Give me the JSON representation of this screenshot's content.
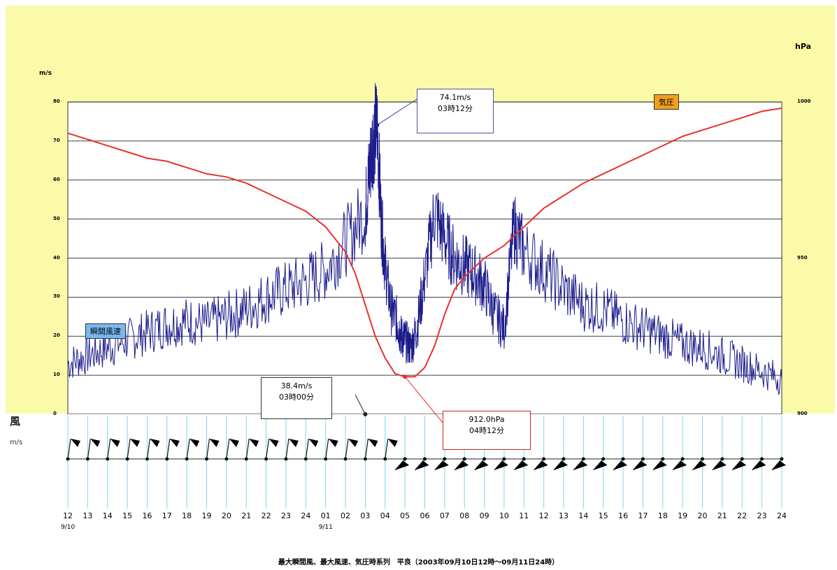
{
  "chart_data": {
    "type": "line",
    "title": "",
    "caption": "最大瞬間風、最大風速、気圧時系列　平良（2003年09月10日12時～09月11日24時）",
    "y_left": {
      "unit": "m/s",
      "range": [
        0,
        80
      ],
      "ticks": [
        0,
        10,
        20,
        30,
        40,
        50,
        60,
        70,
        80
      ]
    },
    "y_right": {
      "unit": "hPa",
      "range": [
        900,
        1000
      ],
      "ticks": [
        "900",
        "950",
        "1000"
      ]
    },
    "x": {
      "ticks": [
        "12",
        "13",
        "14",
        "15",
        "16",
        "17",
        "18",
        "19",
        "20",
        "21",
        "22",
        "23",
        "24",
        "01",
        "02",
        "03",
        "04",
        "05",
        "06",
        "07",
        "08",
        "09",
        "10",
        "11",
        "12",
        "13",
        "14",
        "15",
        "16",
        "17",
        "18",
        "19",
        "20",
        "21",
        "22",
        "23",
        "24"
      ],
      "date_labels": [
        {
          "at_index": 0,
          "text": "9/10"
        },
        {
          "at_index": 13,
          "text": "9/11"
        }
      ],
      "range": [
        0,
        36
      ]
    },
    "grid": "horizontal",
    "series": [
      {
        "name": "瞬間風速",
        "color": "#1c1c8c",
        "axis": "left",
        "x": [
          0,
          1,
          2,
          3,
          4,
          5,
          6,
          7,
          8,
          9,
          10,
          11,
          12,
          13,
          14,
          15,
          15.2,
          15.4,
          15.6,
          15.8,
          16,
          16.3,
          16.6,
          16.8,
          17,
          17.3,
          17.6,
          18,
          18.5,
          19,
          19.5,
          20,
          20.5,
          21,
          21.5,
          22,
          22.5,
          23,
          24,
          25,
          26,
          27,
          28,
          29,
          30,
          31,
          32,
          33,
          34,
          35,
          36
        ],
        "values": [
          13,
          15,
          17,
          19,
          21,
          23,
          24,
          23,
          25,
          27,
          30,
          32,
          34,
          37,
          44,
          52,
          62,
          71,
          74.1,
          50,
          38,
          27,
          24,
          20,
          19,
          17,
          22,
          35,
          52,
          45,
          40,
          38,
          36,
          33,
          26,
          22,
          48,
          42,
          37,
          32,
          28,
          27,
          24,
          22,
          20,
          18,
          17,
          15,
          13,
          11,
          9
        ]
      },
      {
        "name": "気圧",
        "color": "#e83030",
        "axis": "right",
        "x": [
          0,
          1,
          2,
          3,
          4,
          5,
          6,
          7,
          8,
          9,
          10,
          11,
          12,
          13,
          14,
          14.5,
          15,
          15.5,
          16,
          16.5,
          17,
          17.5,
          18,
          18.5,
          19,
          19.5,
          20,
          21,
          22,
          23,
          24,
          25,
          26,
          27,
          28,
          29,
          30,
          31,
          32,
          33,
          34,
          35,
          36
        ],
        "values": [
          990,
          988,
          986,
          984,
          982,
          981,
          979,
          977,
          976,
          974,
          971,
          968,
          965,
          960,
          952,
          945,
          935,
          925,
          918,
          913,
          912,
          912,
          915,
          922,
          932,
          940,
          944,
          950,
          954,
          960,
          966,
          970,
          974,
          977,
          980,
          983,
          986,
          989,
          991,
          993,
          995,
          997,
          998
        ]
      }
    ],
    "annotations": [
      {
        "text": "74.1m/s",
        "text2": "03時12分",
        "series": "瞬間風速"
      },
      {
        "text": "38.4m/s",
        "text2": "03時00分",
        "series": "最大風速"
      },
      {
        "text": "912.0hPa",
        "text2": "04時12分",
        "series": "気圧"
      }
    ],
    "legend": {
      "wind_label": "瞬間風速",
      "pressure_label": "気圧"
    },
    "wind_panel": {
      "label": "風",
      "unit": "m/s"
    }
  }
}
